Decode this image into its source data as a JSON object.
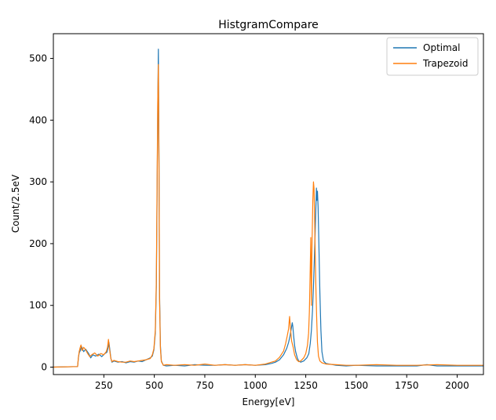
{
  "chart_data": {
    "type": "line",
    "title": "HistgramCompare",
    "xlabel": "Energy[eV]",
    "ylabel": "Count/2.5eV",
    "xlim": [
      0,
      2130
    ],
    "ylim": [
      -12,
      540
    ],
    "x_ticks": [
      250,
      500,
      750,
      1000,
      1250,
      1500,
      1750,
      2000
    ],
    "y_ticks": [
      0,
      100,
      200,
      300,
      400,
      500
    ],
    "grid": false,
    "legend_position": "top-right",
    "series": [
      {
        "name": "Optimal",
        "color": "#1f77b4",
        "points": [
          [
            0,
            0
          ],
          [
            120,
            1
          ],
          [
            124,
            15
          ],
          [
            128,
            23
          ],
          [
            132,
            26
          ],
          [
            140,
            33
          ],
          [
            150,
            25
          ],
          [
            160,
            29
          ],
          [
            175,
            22
          ],
          [
            185,
            15
          ],
          [
            195,
            20
          ],
          [
            210,
            18
          ],
          [
            225,
            21
          ],
          [
            240,
            17
          ],
          [
            255,
            22
          ],
          [
            265,
            24
          ],
          [
            270,
            30
          ],
          [
            275,
            40
          ],
          [
            280,
            28
          ],
          [
            285,
            14
          ],
          [
            290,
            8
          ],
          [
            300,
            10
          ],
          [
            320,
            8
          ],
          [
            340,
            9
          ],
          [
            360,
            7
          ],
          [
            380,
            9
          ],
          [
            400,
            8
          ],
          [
            420,
            10
          ],
          [
            440,
            9
          ],
          [
            460,
            12
          ],
          [
            480,
            15
          ],
          [
            490,
            18
          ],
          [
            498,
            28
          ],
          [
            505,
            55
          ],
          [
            510,
            130
          ],
          [
            514,
            280
          ],
          [
            517,
            420
          ],
          [
            520,
            515
          ],
          [
            523,
            330
          ],
          [
            526,
            120
          ],
          [
            530,
            35
          ],
          [
            535,
            10
          ],
          [
            545,
            3
          ],
          [
            560,
            2
          ],
          [
            600,
            3
          ],
          [
            650,
            2
          ],
          [
            700,
            4
          ],
          [
            750,
            3
          ],
          [
            800,
            3
          ],
          [
            850,
            4
          ],
          [
            900,
            3
          ],
          [
            950,
            4
          ],
          [
            1000,
            3
          ],
          [
            1050,
            4
          ],
          [
            1080,
            6
          ],
          [
            1100,
            8
          ],
          [
            1120,
            12
          ],
          [
            1140,
            20
          ],
          [
            1155,
            30
          ],
          [
            1165,
            40
          ],
          [
            1172,
            50
          ],
          [
            1178,
            62
          ],
          [
            1183,
            72
          ],
          [
            1186,
            66
          ],
          [
            1190,
            50
          ],
          [
            1195,
            35
          ],
          [
            1200,
            25
          ],
          [
            1208,
            15
          ],
          [
            1215,
            10
          ],
          [
            1225,
            8
          ],
          [
            1240,
            10
          ],
          [
            1255,
            15
          ],
          [
            1265,
            22
          ],
          [
            1272,
            38
          ],
          [
            1278,
            60
          ],
          [
            1283,
            90
          ],
          [
            1288,
            130
          ],
          [
            1292,
            170
          ],
          [
            1296,
            210
          ],
          [
            1300,
            260
          ],
          [
            1303,
            290
          ],
          [
            1305,
            270
          ],
          [
            1308,
            285
          ],
          [
            1311,
            260
          ],
          [
            1315,
            200
          ],
          [
            1320,
            120
          ],
          [
            1325,
            60
          ],
          [
            1330,
            25
          ],
          [
            1338,
            10
          ],
          [
            1350,
            6
          ],
          [
            1400,
            3
          ],
          [
            1450,
            2
          ],
          [
            1500,
            3
          ],
          [
            1600,
            2
          ],
          [
            1700,
            2
          ],
          [
            1800,
            2
          ],
          [
            1850,
            4
          ],
          [
            1900,
            2
          ],
          [
            2000,
            2
          ],
          [
            2130,
            2
          ]
        ]
      },
      {
        "name": "Trapezoid",
        "color": "#ff7f0e",
        "points": [
          [
            0,
            0
          ],
          [
            120,
            1
          ],
          [
            124,
            16
          ],
          [
            128,
            25
          ],
          [
            132,
            31
          ],
          [
            137,
            36
          ],
          [
            142,
            27
          ],
          [
            150,
            32
          ],
          [
            160,
            28
          ],
          [
            170,
            22
          ],
          [
            180,
            17
          ],
          [
            190,
            20
          ],
          [
            205,
            23
          ],
          [
            220,
            18
          ],
          [
            235,
            22
          ],
          [
            250,
            20
          ],
          [
            262,
            25
          ],
          [
            268,
            32
          ],
          [
            273,
            45
          ],
          [
            278,
            30
          ],
          [
            284,
            15
          ],
          [
            290,
            9
          ],
          [
            300,
            11
          ],
          [
            320,
            9
          ],
          [
            340,
            8
          ],
          [
            360,
            8
          ],
          [
            380,
            10
          ],
          [
            400,
            9
          ],
          [
            420,
            10
          ],
          [
            440,
            11
          ],
          [
            460,
            12
          ],
          [
            480,
            14
          ],
          [
            490,
            20
          ],
          [
            498,
            30
          ],
          [
            505,
            60
          ],
          [
            510,
            140
          ],
          [
            514,
            300
          ],
          [
            517,
            430
          ],
          [
            520,
            490
          ],
          [
            523,
            320
          ],
          [
            526,
            110
          ],
          [
            530,
            30
          ],
          [
            535,
            9
          ],
          [
            545,
            3
          ],
          [
            560,
            4
          ],
          [
            600,
            3
          ],
          [
            650,
            4
          ],
          [
            700,
            3
          ],
          [
            750,
            5
          ],
          [
            800,
            3
          ],
          [
            850,
            4
          ],
          [
            900,
            3
          ],
          [
            950,
            4
          ],
          [
            1000,
            3
          ],
          [
            1050,
            5
          ],
          [
            1080,
            8
          ],
          [
            1100,
            10
          ],
          [
            1120,
            16
          ],
          [
            1140,
            26
          ],
          [
            1150,
            38
          ],
          [
            1158,
            50
          ],
          [
            1165,
            62
          ],
          [
            1170,
            82
          ],
          [
            1175,
            60
          ],
          [
            1180,
            42
          ],
          [
            1188,
            32
          ],
          [
            1195,
            20
          ],
          [
            1205,
            12
          ],
          [
            1215,
            9
          ],
          [
            1225,
            10
          ],
          [
            1240,
            15
          ],
          [
            1250,
            22
          ],
          [
            1258,
            35
          ],
          [
            1264,
            55
          ],
          [
            1268,
            90
          ],
          [
            1272,
            160
          ],
          [
            1275,
            210
          ],
          [
            1278,
            100
          ],
          [
            1281,
            200
          ],
          [
            1285,
            270
          ],
          [
            1288,
            300
          ],
          [
            1291,
            290
          ],
          [
            1294,
            240
          ],
          [
            1297,
            180
          ],
          [
            1300,
            130
          ],
          [
            1304,
            80
          ],
          [
            1308,
            40
          ],
          [
            1313,
            18
          ],
          [
            1320,
            10
          ],
          [
            1330,
            7
          ],
          [
            1350,
            5
          ],
          [
            1400,
            4
          ],
          [
            1450,
            3
          ],
          [
            1500,
            3
          ],
          [
            1600,
            4
          ],
          [
            1700,
            3
          ],
          [
            1800,
            3
          ],
          [
            1900,
            4
          ],
          [
            2000,
            3
          ],
          [
            2130,
            3
          ]
        ]
      }
    ]
  }
}
